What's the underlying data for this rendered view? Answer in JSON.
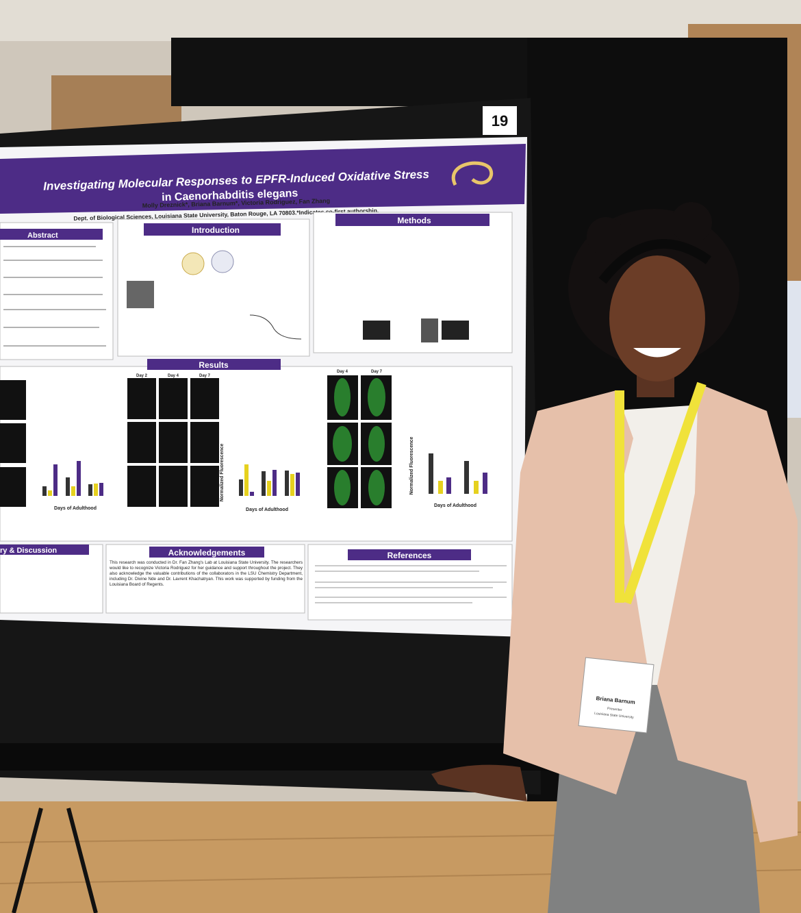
{
  "board_number": "19",
  "poster": {
    "title_line1": "Investigating Molecular Responses to EPFR-Induced Oxidative Stress",
    "title_line2": "in Caenorhabditis elegans",
    "authors": "Molly Dreznick*, Briana Barnum*, Victoria Rodriguez, Fan Zhang",
    "affiliation": "Dept. of Biological Sciences, Louisiana State University, Baton Rouge, LA 70803.*Indicates co-first authorship.",
    "sections": {
      "abstract": "Abstract",
      "introduction": "Introduction",
      "methods": "Methods",
      "results": "Results",
      "summary": "ry & Discussion",
      "acknowledgements": "Acknowledgements",
      "references": "References"
    },
    "acknowledgements_text": "This research was conducted in Dr. Fan Zhang's Lab at Louisiana State University. The researchers would like to recognize Victoria Rodriguez for her guidance and support throughout the project. They also acknowledge the valuable contributions of the collaborators in the LSU Chemistry Department, including Dr. Divine Nde and Dr. Lavrent Khachatryan. This work was supported by funding from the Louisiana Board of Regents.",
    "axis_label_x": "Days of Adulthood",
    "axis_label_y": "Normalized Fluorescence",
    "results_days": [
      "Day 2",
      "Day 4",
      "Day 7"
    ]
  },
  "badge": {
    "name": "Briana Barnum",
    "role": "Presenter",
    "institution": "Louisiana State University"
  }
}
